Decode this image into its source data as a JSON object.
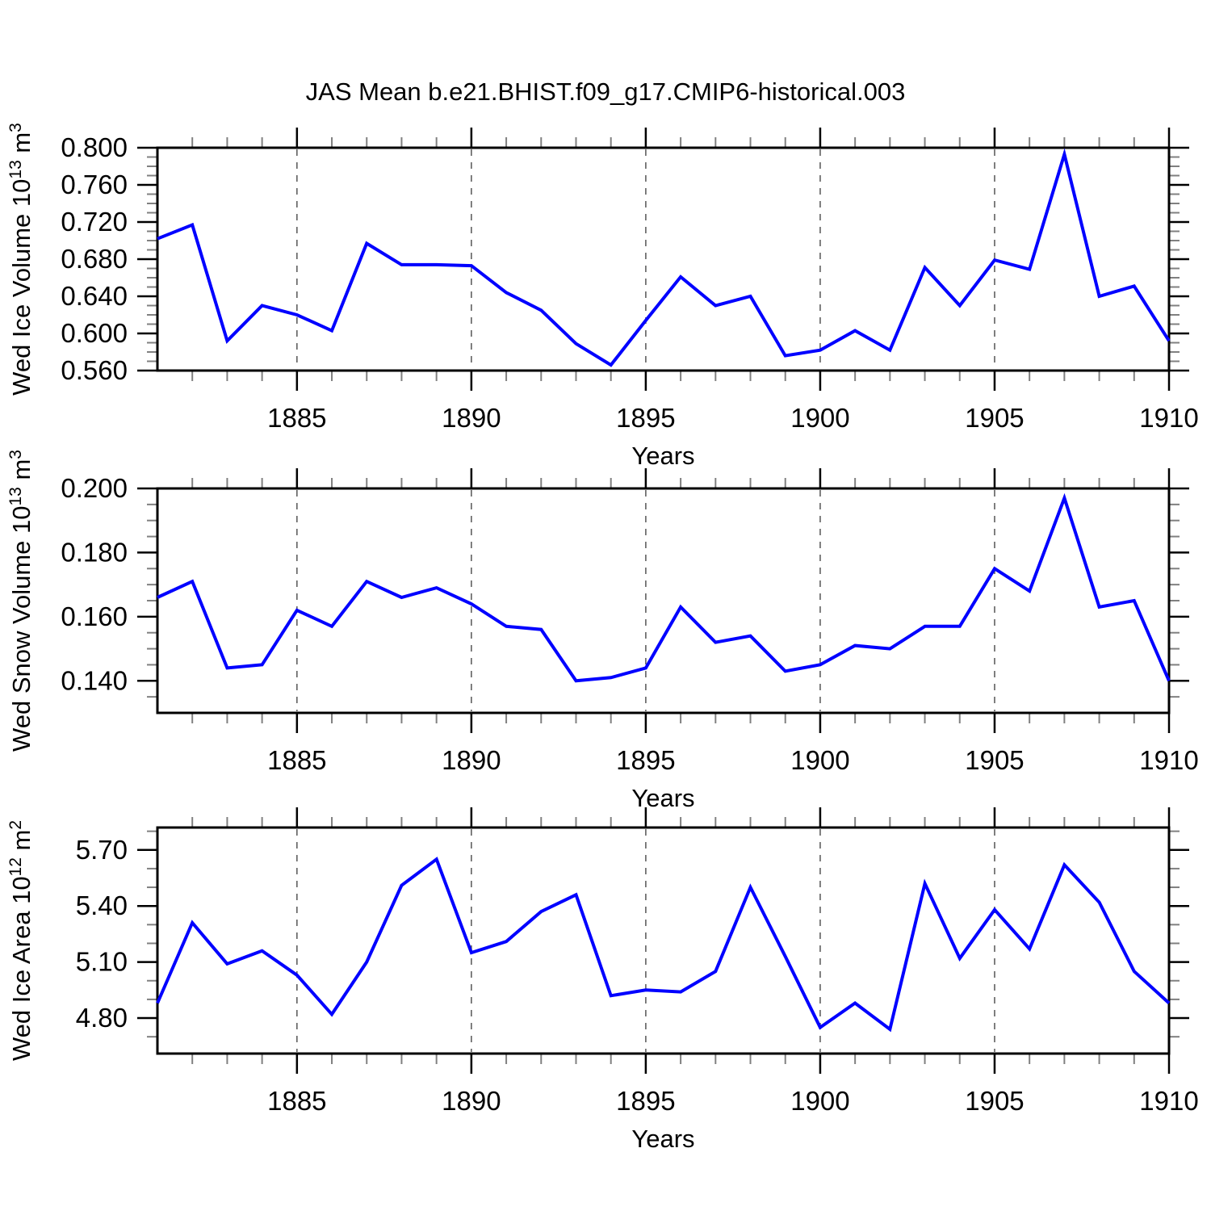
{
  "title": "JAS Mean b.e21.BHIST.f09_g17.CMIP6-historical.003",
  "colors": {
    "line": "#0000ff",
    "axis": "#000000",
    "major_tick": "#000000",
    "minor_tick": "#808080",
    "grid": "#555555",
    "text": "#000000",
    "background": "#ffffff"
  },
  "chart_data": [
    {
      "type": "line",
      "name": "ice-volume",
      "ylabel": "Wed Ice Volume 10^13 m^3",
      "ylabel_parts": [
        {
          "t": "Wed Ice Volume 10"
        },
        {
          "t": "13",
          "sup": 1
        },
        {
          "t": " m"
        },
        {
          "t": "3",
          "sup": 1
        }
      ],
      "xlabel": "Years",
      "x": [
        1881,
        1882,
        1883,
        1884,
        1885,
        1886,
        1887,
        1888,
        1889,
        1890,
        1891,
        1892,
        1893,
        1894,
        1895,
        1896,
        1897,
        1898,
        1899,
        1900,
        1901,
        1902,
        1903,
        1904,
        1905,
        1906,
        1907,
        1908,
        1909,
        1910
      ],
      "values": [
        0.702,
        0.717,
        0.592,
        0.63,
        0.62,
        0.603,
        0.697,
        0.674,
        0.674,
        0.673,
        0.644,
        0.625,
        0.589,
        0.566,
        0.614,
        0.661,
        0.63,
        0.64,
        0.576,
        0.582,
        0.603,
        0.582,
        0.671,
        0.63,
        0.679,
        0.669,
        0.793,
        0.64,
        0.651,
        0.592
      ],
      "ylim": [
        0.56,
        0.8
      ],
      "yticks": [
        0.56,
        0.6,
        0.64,
        0.68,
        0.72,
        0.76,
        0.8
      ],
      "ytick_labels": [
        "0.560",
        "0.600",
        "0.640",
        "0.680",
        "0.720",
        "0.760",
        "0.800"
      ],
      "y_minor_step": 0.01,
      "xlim": [
        1881,
        1910
      ],
      "xticks": [
        1885,
        1890,
        1895,
        1900,
        1905,
        1910
      ],
      "xtick_labels": [
        "1885",
        "1890",
        "1895",
        "1900",
        "1905",
        "1910"
      ],
      "x_minor_step": 1,
      "grid_x": [
        1885,
        1890,
        1895,
        1900,
        1905
      ],
      "grid_style": "vertical-dashed",
      "legend": "none"
    },
    {
      "type": "line",
      "name": "snow-volume",
      "ylabel": "Wed Snow Volume 10^13 m^3",
      "ylabel_parts": [
        {
          "t": "Wed Snow Volume 10"
        },
        {
          "t": "13",
          "sup": 1
        },
        {
          "t": " m"
        },
        {
          "t": "3",
          "sup": 1
        }
      ],
      "xlabel": "Years",
      "x": [
        1881,
        1882,
        1883,
        1884,
        1885,
        1886,
        1887,
        1888,
        1889,
        1890,
        1891,
        1892,
        1893,
        1894,
        1895,
        1896,
        1897,
        1898,
        1899,
        1900,
        1901,
        1902,
        1903,
        1904,
        1905,
        1906,
        1907,
        1908,
        1909,
        1910
      ],
      "values": [
        0.166,
        0.171,
        0.144,
        0.145,
        0.162,
        0.157,
        0.171,
        0.166,
        0.169,
        0.164,
        0.157,
        0.156,
        0.14,
        0.141,
        0.144,
        0.163,
        0.152,
        0.154,
        0.143,
        0.145,
        0.151,
        0.15,
        0.157,
        0.157,
        0.175,
        0.168,
        0.197,
        0.163,
        0.165,
        0.14
      ],
      "ylim": [
        0.13,
        0.2
      ],
      "yticks": [
        0.14,
        0.16,
        0.18,
        0.2
      ],
      "ytick_labels": [
        "0.140",
        "0.160",
        "0.180",
        "0.200"
      ],
      "y_minor_step": 0.005,
      "xlim": [
        1881,
        1910
      ],
      "xticks": [
        1885,
        1890,
        1895,
        1900,
        1905,
        1910
      ],
      "xtick_labels": [
        "1885",
        "1890",
        "1895",
        "1900",
        "1905",
        "1910"
      ],
      "x_minor_step": 1,
      "grid_x": [
        1885,
        1890,
        1895,
        1900,
        1905
      ],
      "grid_style": "vertical-dashed",
      "legend": "none"
    },
    {
      "type": "line",
      "name": "ice-area",
      "ylabel": "Wed Ice Area 10^12 m^2",
      "ylabel_parts": [
        {
          "t": "Wed Ice Area 10"
        },
        {
          "t": "12",
          "sup": 1
        },
        {
          "t": " m"
        },
        {
          "t": "2",
          "sup": 1
        }
      ],
      "xlabel": "Years",
      "x": [
        1881,
        1882,
        1883,
        1884,
        1885,
        1886,
        1887,
        1888,
        1889,
        1890,
        1891,
        1892,
        1893,
        1894,
        1895,
        1896,
        1897,
        1898,
        1899,
        1900,
        1901,
        1902,
        1903,
        1904,
        1905,
        1906,
        1907,
        1908,
        1909,
        1910
      ],
      "values": [
        4.88,
        5.31,
        5.09,
        5.16,
        5.03,
        4.82,
        5.1,
        5.51,
        5.65,
        5.15,
        5.21,
        5.37,
        5.46,
        4.92,
        4.95,
        4.94,
        5.05,
        5.5,
        5.13,
        4.75,
        4.88,
        4.74,
        5.52,
        5.12,
        5.38,
        5.17,
        5.62,
        5.42,
        5.05,
        4.88
      ],
      "ylim": [
        4.61,
        5.82
      ],
      "yticks": [
        4.8,
        5.1,
        5.4,
        5.7
      ],
      "ytick_labels": [
        "4.80",
        "5.10",
        "5.40",
        "5.70"
      ],
      "y_minor_step": 0.1,
      "xlim": [
        1881,
        1910
      ],
      "xticks": [
        1885,
        1890,
        1895,
        1900,
        1905,
        1910
      ],
      "xtick_labels": [
        "1885",
        "1890",
        "1895",
        "1900",
        "1905",
        "1910"
      ],
      "x_minor_step": 1,
      "grid_x": [
        1885,
        1890,
        1895,
        1900,
        1905
      ],
      "grid_style": "vertical-dashed",
      "legend": "none"
    }
  ]
}
